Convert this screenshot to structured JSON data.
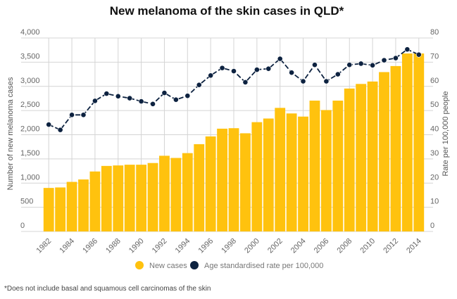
{
  "chart_data": {
    "type": "bar+line",
    "title": "New melanoma of the skin cases in QLD*",
    "footnote": "*Does not include basal and squamous cell carcinomas of the skin",
    "ylabel_left": "Number of new melanoma cases",
    "ylabel_right": "Rate per 100,000 people",
    "ylim_left": [
      0,
      4000
    ],
    "ylim_right": [
      0,
      80
    ],
    "yticks_left": [
      "0",
      "500",
      "1,000",
      "1,500",
      "2,000",
      "2,500",
      "3,000",
      "3,500",
      "4,000"
    ],
    "yticks_right": [
      "0",
      "10",
      "20",
      "30",
      "40",
      "50",
      "60",
      "70",
      "80"
    ],
    "grid": true,
    "legend_position": "bottom",
    "categories": [
      1982,
      1983,
      1984,
      1985,
      1986,
      1987,
      1988,
      1989,
      1990,
      1991,
      1992,
      1993,
      1994,
      1995,
      1996,
      1997,
      1998,
      1999,
      2000,
      2001,
      2002,
      2003,
      2004,
      2005,
      2006,
      2007,
      2008,
      2009,
      2010,
      2011,
      2012,
      2013,
      2014
    ],
    "xtick_labels": [
      "1982",
      "1984",
      "1986",
      "1988",
      "1990",
      "1992",
      "1994",
      "1996",
      "1998",
      "2000",
      "2002",
      "2004",
      "2006",
      "2008",
      "2010",
      "2012",
      "2014"
    ],
    "series": [
      {
        "name": "New cases",
        "type": "bar",
        "axis": "left",
        "color": "#FFC20E",
        "values": [
          900,
          910,
          1025,
          1075,
          1240,
          1355,
          1365,
          1380,
          1380,
          1415,
          1565,
          1520,
          1620,
          1805,
          1965,
          2125,
          2135,
          2030,
          2260,
          2335,
          2555,
          2440,
          2375,
          2705,
          2510,
          2705,
          2955,
          3050,
          3100,
          3295,
          3420,
          3680,
          3680
        ]
      },
      {
        "name": "Age standardised rate per 100,000",
        "type": "line",
        "axis": "right",
        "color": "#0D2240",
        "values": [
          44.2,
          42.0,
          48.2,
          48.2,
          54.0,
          57.0,
          55.9,
          55.1,
          53.8,
          52.7,
          57.3,
          54.5,
          56.1,
          60.6,
          64.5,
          67.6,
          66.3,
          61.7,
          66.9,
          67.3,
          71.4,
          65.7,
          62.1,
          68.9,
          62.1,
          65.0,
          68.9,
          69.4,
          68.7,
          70.8,
          71.7,
          75.3,
          73.1
        ]
      }
    ]
  }
}
